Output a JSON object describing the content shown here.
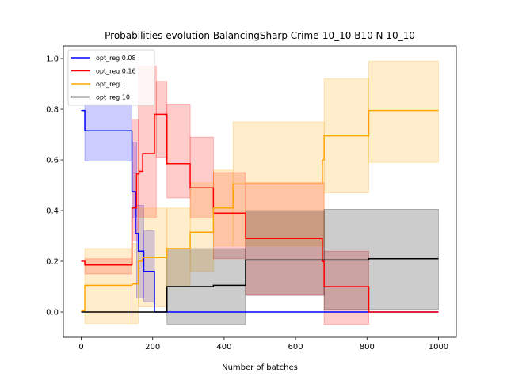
{
  "chart_data": {
    "type": "line",
    "title": "Probabilities evolution BalancingSharp Crime-10_10 B10 N 10_10",
    "xlabel": "Number of batches",
    "ylabel": "",
    "xlim": [
      -50,
      1050
    ],
    "ylim": [
      -0.1,
      1.05
    ],
    "xticks": [
      0,
      200,
      400,
      600,
      800,
      1000
    ],
    "yticks": [
      0.0,
      0.2,
      0.4,
      0.6,
      0.8,
      1.0
    ],
    "legend_position": "top-left",
    "series": [
      {
        "name": "opt_reg 0.08",
        "color": "#0000ff",
        "points": [
          [
            0,
            0.795
          ],
          [
            10,
            0.795
          ],
          [
            10,
            0.715
          ],
          [
            142,
            0.715
          ],
          [
            142,
            0.475
          ],
          [
            152,
            0.475
          ],
          [
            152,
            0.31
          ],
          [
            160,
            0.31
          ],
          [
            160,
            0.24
          ],
          [
            175,
            0.24
          ],
          [
            175,
            0.16
          ],
          [
            205,
            0.16
          ],
          [
            205,
            0.0
          ],
          [
            1000,
            0.0
          ]
        ],
        "band": [
          {
            "x0": 10,
            "x1": 142,
            "lo": 0.595,
            "hi": 0.82
          },
          {
            "x0": 142,
            "x1": 155,
            "lo": 0.37,
            "hi": 0.67
          },
          {
            "x0": 155,
            "x1": 175,
            "lo": 0.055,
            "hi": 0.42
          },
          {
            "x0": 175,
            "x1": 205,
            "lo": 0.04,
            "hi": 0.32
          }
        ]
      },
      {
        "name": "opt_reg 0.16",
        "color": "#ff0000",
        "points": [
          [
            0,
            0.2
          ],
          [
            10,
            0.2
          ],
          [
            10,
            0.185
          ],
          [
            142,
            0.185
          ],
          [
            142,
            0.41
          ],
          [
            155,
            0.41
          ],
          [
            155,
            0.545
          ],
          [
            162,
            0.545
          ],
          [
            162,
            0.555
          ],
          [
            172,
            0.555
          ],
          [
            172,
            0.625
          ],
          [
            205,
            0.625
          ],
          [
            205,
            0.78
          ],
          [
            240,
            0.78
          ],
          [
            240,
            0.585
          ],
          [
            305,
            0.585
          ],
          [
            305,
            0.49
          ],
          [
            370,
            0.49
          ],
          [
            370,
            0.39
          ],
          [
            460,
            0.39
          ],
          [
            460,
            0.29
          ],
          [
            675,
            0.29
          ],
          [
            675,
            0.2
          ],
          [
            680,
            0.2
          ],
          [
            680,
            0.1
          ],
          [
            805,
            0.1
          ],
          [
            805,
            0.0
          ],
          [
            1000,
            0.0
          ]
        ],
        "band": [
          {
            "x0": 10,
            "x1": 142,
            "lo": 0.15,
            "hi": 0.21
          },
          {
            "x0": 142,
            "x1": 160,
            "lo": 0.28,
            "hi": 0.76
          },
          {
            "x0": 160,
            "x1": 210,
            "lo": 0.37,
            "hi": 0.97
          },
          {
            "x0": 210,
            "x1": 240,
            "lo": 0.61,
            "hi": 0.91
          },
          {
            "x0": 240,
            "x1": 305,
            "lo": 0.45,
            "hi": 0.82
          },
          {
            "x0": 305,
            "x1": 370,
            "lo": 0.37,
            "hi": 0.69
          },
          {
            "x0": 370,
            "x1": 460,
            "lo": 0.21,
            "hi": 0.55
          },
          {
            "x0": 460,
            "x1": 680,
            "lo": 0.07,
            "hi": 0.51
          },
          {
            "x0": 680,
            "x1": 805,
            "lo": -0.05,
            "hi": 0.24
          }
        ]
      },
      {
        "name": "opt_reg 1",
        "color": "#ffa500",
        "points": [
          [
            0,
            0.005
          ],
          [
            10,
            0.005
          ],
          [
            10,
            0.105
          ],
          [
            142,
            0.105
          ],
          [
            142,
            0.11
          ],
          [
            160,
            0.11
          ],
          [
            160,
            0.2
          ],
          [
            172,
            0.2
          ],
          [
            172,
            0.215
          ],
          [
            240,
            0.215
          ],
          [
            240,
            0.25
          ],
          [
            305,
            0.25
          ],
          [
            305,
            0.315
          ],
          [
            370,
            0.315
          ],
          [
            370,
            0.41
          ],
          [
            425,
            0.41
          ],
          [
            425,
            0.505
          ],
          [
            675,
            0.505
          ],
          [
            675,
            0.6
          ],
          [
            680,
            0.6
          ],
          [
            680,
            0.695
          ],
          [
            805,
            0.695
          ],
          [
            805,
            0.795
          ],
          [
            1000,
            0.795
          ]
        ],
        "band": [
          {
            "x0": 10,
            "x1": 142,
            "lo": -0.045,
            "hi": 0.25
          },
          {
            "x0": 142,
            "x1": 160,
            "lo": -0.045,
            "hi": 0.27
          },
          {
            "x0": 160,
            "x1": 240,
            "lo": 0.02,
            "hi": 0.41
          },
          {
            "x0": 240,
            "x1": 305,
            "lo": 0.1,
            "hi": 0.41
          },
          {
            "x0": 305,
            "x1": 370,
            "lo": 0.16,
            "hi": 0.51
          },
          {
            "x0": 370,
            "x1": 425,
            "lo": 0.26,
            "hi": 0.56
          },
          {
            "x0": 425,
            "x1": 680,
            "lo": 0.26,
            "hi": 0.75
          },
          {
            "x0": 680,
            "x1": 805,
            "lo": 0.47,
            "hi": 0.92
          },
          {
            "x0": 805,
            "x1": 1000,
            "lo": 0.59,
            "hi": 0.99
          }
        ]
      },
      {
        "name": "opt_reg 10",
        "color": "#000000",
        "points": [
          [
            0,
            0.0
          ],
          [
            240,
            0.0
          ],
          [
            240,
            0.1
          ],
          [
            370,
            0.1
          ],
          [
            370,
            0.105
          ],
          [
            460,
            0.105
          ],
          [
            460,
            0.205
          ],
          [
            805,
            0.205
          ],
          [
            805,
            0.21
          ],
          [
            1000,
            0.21
          ]
        ],
        "band": [
          {
            "x0": 240,
            "x1": 460,
            "lo": -0.05,
            "hi": 0.25
          },
          {
            "x0": 460,
            "x1": 680,
            "lo": 0.065,
            "hi": 0.4
          },
          {
            "x0": 680,
            "x1": 1000,
            "lo": 0.01,
            "hi": 0.405
          }
        ]
      }
    ]
  }
}
